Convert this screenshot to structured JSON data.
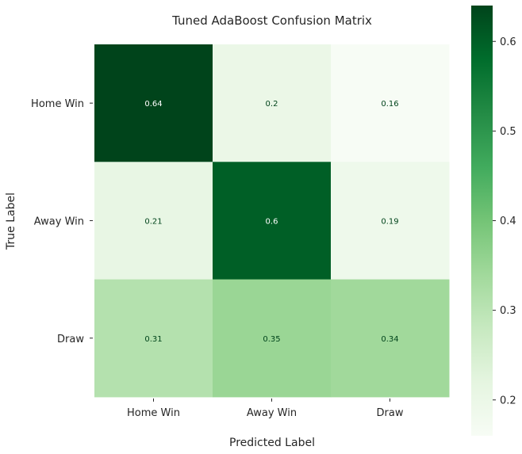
{
  "chart_data": {
    "type": "heatmap",
    "title": "Tuned AdaBoost Confusion Matrix",
    "xlabel": "Predicted Label",
    "ylabel": "True Label",
    "x_categories": [
      "Home Win",
      "Away Win",
      "Draw"
    ],
    "y_categories": [
      "Home Win",
      "Away Win",
      "Draw"
    ],
    "values": [
      [
        0.64,
        0.2,
        0.16
      ],
      [
        0.21,
        0.6,
        0.19
      ],
      [
        0.31,
        0.35,
        0.34
      ]
    ],
    "colormap": "Greens",
    "colorbar": {
      "range": [
        0.16,
        0.64
      ],
      "ticks": [
        0.2,
        0.3,
        0.4,
        0.5,
        0.6
      ]
    },
    "grid": false,
    "colors": {
      "low": "#f7fcf5",
      "high": "#00441b",
      "text": "#262626"
    }
  }
}
